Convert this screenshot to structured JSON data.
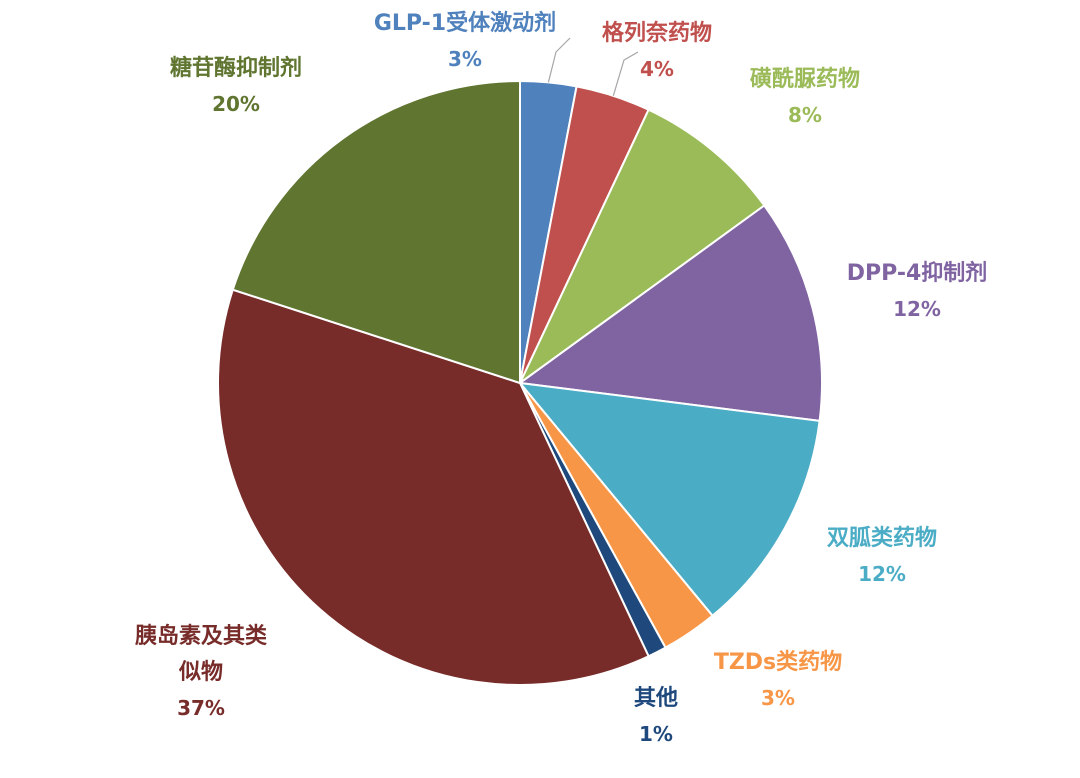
{
  "chart_data": {
    "type": "pie",
    "slices": [
      {
        "name": "GLP-1受体激动剂",
        "value": 3,
        "label": "3%",
        "color": "#4F81BD"
      },
      {
        "name": "格列奈药物",
        "value": 4,
        "label": "4%",
        "color": "#C0504D"
      },
      {
        "name": "磺酰脲药物",
        "value": 8,
        "label": "8%",
        "color": "#9BBB59"
      },
      {
        "name": "DPP-4抑制剂",
        "value": 12,
        "label": "12%",
        "color": "#8064A2"
      },
      {
        "name": "双胍类药物",
        "value": 12,
        "label": "12%",
        "color": "#4BACC6"
      },
      {
        "name": "TZDs类药物",
        "value": 3,
        "label": "3%",
        "color": "#F79646"
      },
      {
        "name": "其他",
        "value": 1,
        "label": "1%",
        "color": "#1F497D"
      },
      {
        "name": "胰岛素及其类似物",
        "value": 37,
        "label": "37%",
        "color": "#772C2A"
      },
      {
        "name": "糖苷酶抑制剂",
        "value": 20,
        "label": "20%",
        "color": "#5F7530"
      }
    ],
    "legend": "none",
    "start_angle": "12 o'clock, clockwise"
  }
}
